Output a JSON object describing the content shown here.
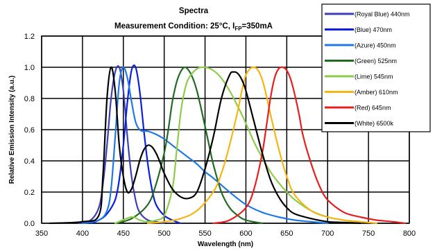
{
  "chart_data": {
    "type": "line",
    "title": "Spectra",
    "subtitle": {
      "prefix": "Measurement Condition: 25°C, I",
      "subscript": "FP",
      "suffix": "=350mA"
    },
    "xlabel": "Wavelength (nm)",
    "ylabel": "Relative Emission Intensity (a.u.)",
    "xlim": [
      350,
      800
    ],
    "ylim": [
      0,
      1.2
    ],
    "xticks": [
      "350",
      "400",
      "450",
      "500",
      "550",
      "600",
      "650",
      "700",
      "750",
      "800"
    ],
    "yticks": [
      "0.0",
      "0.2",
      "0.4",
      "0.6",
      "0.8",
      "1.0",
      "1.2"
    ],
    "grid": true,
    "legend_position": "top-right",
    "series": [
      {
        "name": "(Royal Blue) 440nm",
        "color": "#3b3fb5",
        "x": [
          395,
          410,
          420,
          425,
          430,
          435,
          440,
          445,
          450,
          455,
          460,
          465,
          470,
          480,
          490,
          500
        ],
        "y": [
          0,
          0.02,
          0.1,
          0.25,
          0.5,
          0.8,
          0.97,
          1.0,
          0.85,
          0.55,
          0.3,
          0.15,
          0.07,
          0.02,
          0.01,
          0
        ]
      },
      {
        "name": "(Blue) 470nm",
        "color": "#0a1ee0",
        "x": [
          410,
          420,
          430,
          440,
          445,
          450,
          455,
          460,
          465,
          470,
          475,
          480,
          485,
          490,
          500,
          510,
          520
        ],
        "y": [
          0,
          0.02,
          0.06,
          0.15,
          0.28,
          0.5,
          0.78,
          0.98,
          1.0,
          0.85,
          0.6,
          0.38,
          0.22,
          0.12,
          0.05,
          0.02,
          0
        ]
      },
      {
        "name": "(Azure) 450nm",
        "color": "#1f78e6",
        "x": [
          400,
          420,
          430,
          435,
          440,
          445,
          450,
          455,
          460,
          465,
          470,
          475,
          480,
          490,
          500,
          510,
          520,
          530,
          540,
          550,
          560,
          580,
          600,
          620,
          640,
          660,
          680,
          700
        ],
        "y": [
          0,
          0.02,
          0.08,
          0.22,
          0.55,
          0.9,
          1.0,
          0.93,
          0.78,
          0.65,
          0.6,
          0.59,
          0.59,
          0.57,
          0.54,
          0.5,
          0.46,
          0.42,
          0.38,
          0.33,
          0.29,
          0.2,
          0.12,
          0.07,
          0.04,
          0.02,
          0.01,
          0
        ]
      },
      {
        "name": "(Green) 525nm",
        "color": "#1f6b1f",
        "x": [
          440,
          460,
          480,
          490,
          500,
          505,
          510,
          515,
          520,
          525,
          530,
          535,
          540,
          545,
          550,
          555,
          560,
          570,
          580,
          590,
          600,
          620
        ],
        "y": [
          0,
          0.03,
          0.12,
          0.25,
          0.45,
          0.6,
          0.78,
          0.9,
          0.97,
          1.0,
          0.98,
          0.93,
          0.85,
          0.74,
          0.62,
          0.5,
          0.38,
          0.2,
          0.1,
          0.05,
          0.02,
          0
        ]
      },
      {
        "name": "(Lime) 545nm",
        "color": "#8ccc4a",
        "x": [
          440,
          460,
          470,
          480,
          490,
          500,
          510,
          515,
          520,
          525,
          530,
          540,
          550,
          560,
          570,
          580,
          590,
          600,
          610,
          620,
          630,
          640,
          650,
          660,
          680,
          700,
          720,
          740
        ],
        "y": [
          0,
          0.04,
          0.02,
          0.01,
          0.02,
          0.05,
          0.22,
          0.45,
          0.7,
          0.85,
          0.93,
          0.99,
          1.0,
          0.98,
          0.93,
          0.85,
          0.75,
          0.64,
          0.52,
          0.42,
          0.33,
          0.26,
          0.2,
          0.15,
          0.08,
          0.04,
          0.02,
          0
        ]
      },
      {
        "name": "(Amber) 610nm",
        "color": "#f5b512",
        "x": [
          480,
          500,
          520,
          540,
          560,
          570,
          580,
          590,
          595,
          600,
          605,
          610,
          615,
          620,
          625,
          630,
          640,
          650,
          660,
          680,
          700,
          720,
          740,
          760
        ],
        "y": [
          0,
          0.01,
          0.03,
          0.08,
          0.2,
          0.32,
          0.5,
          0.72,
          0.85,
          0.95,
          0.99,
          1.0,
          0.98,
          0.92,
          0.82,
          0.7,
          0.48,
          0.3,
          0.18,
          0.08,
          0.04,
          0.02,
          0.01,
          0
        ]
      },
      {
        "name": "(Red) 645nm",
        "color": "#e61e1e",
        "x": [
          560,
          580,
          600,
          610,
          620,
          625,
          630,
          635,
          640,
          645,
          650,
          655,
          660,
          665,
          670,
          680,
          690,
          700,
          720,
          740,
          760,
          780,
          795
        ],
        "y": [
          0,
          0.02,
          0.1,
          0.22,
          0.45,
          0.62,
          0.8,
          0.93,
          0.99,
          1.0,
          0.98,
          0.92,
          0.82,
          0.7,
          0.56,
          0.38,
          0.24,
          0.15,
          0.07,
          0.04,
          0.02,
          0.01,
          0
        ]
      },
      {
        "name": "(White) 6500k",
        "color": "#000000",
        "x": [
          360,
          400,
          420,
          425,
          430,
          435,
          440,
          445,
          450,
          455,
          460,
          465,
          470,
          475,
          480,
          485,
          490,
          495,
          500,
          510,
          520,
          530,
          540,
          550,
          560,
          570,
          580,
          585,
          590,
          595,
          600,
          610,
          620,
          630,
          640,
          650,
          660,
          680,
          700,
          720,
          740
        ],
        "y": [
          0,
          0.01,
          0.05,
          0.3,
          0.8,
          1.0,
          0.85,
          0.5,
          0.3,
          0.2,
          0.22,
          0.3,
          0.4,
          0.47,
          0.5,
          0.49,
          0.45,
          0.39,
          0.32,
          0.22,
          0.17,
          0.16,
          0.2,
          0.35,
          0.55,
          0.8,
          0.95,
          0.97,
          0.96,
          0.92,
          0.85,
          0.65,
          0.45,
          0.28,
          0.17,
          0.1,
          0.06,
          0.03,
          0.01,
          0.005,
          0
        ]
      }
    ]
  }
}
